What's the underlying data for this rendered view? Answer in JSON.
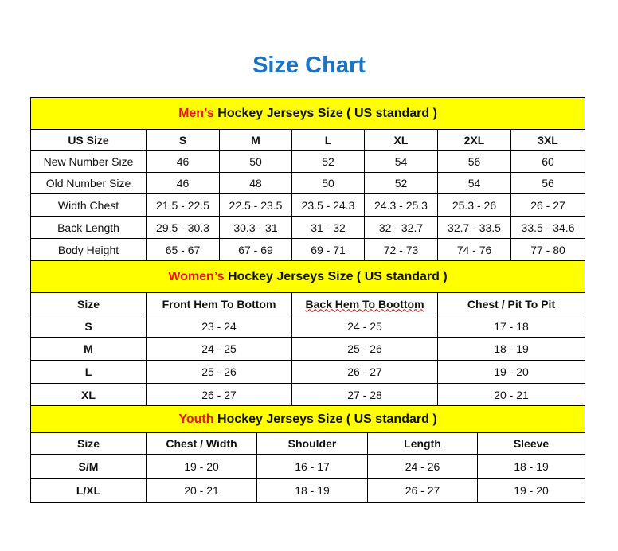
{
  "title": "Size Chart",
  "men": {
    "prefix": "Men’s",
    "heading": " Hockey Jerseys Size ( US standard )",
    "columns": [
      "US Size",
      "S",
      "M",
      "L",
      "XL",
      "2XL",
      "3XL"
    ],
    "rows": [
      [
        "New Number Size",
        "46",
        "50",
        "52",
        "54",
        "56",
        "60"
      ],
      [
        "Old Number Size",
        "46",
        "48",
        "50",
        "52",
        "54",
        "56"
      ],
      [
        "Width Chest",
        "21.5 - 22.5",
        "22.5 - 23.5",
        "23.5 - 24.3",
        "24.3 - 25.3",
        "25.3 - 26",
        "26 - 27"
      ],
      [
        "Back Length",
        "29.5 - 30.3",
        "30.3 - 31",
        "31 - 32",
        "32 - 32.7",
        "32.7 - 33.5",
        "33.5 - 34.6"
      ],
      [
        "Body Height",
        "65 - 67",
        "67 - 69",
        "69 - 71",
        "72 - 73",
        "74 - 76",
        "77 - 80"
      ]
    ]
  },
  "women": {
    "prefix": "Women’s",
    "heading": " Hockey Jerseys Size ( US standard )",
    "columns": [
      "Size",
      "Front Hem To Bottom",
      "Back Hem To Boottom",
      "Chest / Pit To Pit"
    ],
    "rows": [
      [
        "S",
        "23 - 24",
        "24 - 25",
        "17 - 18"
      ],
      [
        "M",
        "24 - 25",
        "25 - 26",
        "18 - 19"
      ],
      [
        "L",
        "25 - 26",
        "26 - 27",
        "19 - 20"
      ],
      [
        "XL",
        "26 - 27",
        "27 - 28",
        "20 - 21"
      ]
    ]
  },
  "youth": {
    "prefix": "Youth",
    "heading": " Hockey Jerseys Size ( US standard )",
    "columns": [
      "Size",
      "Chest / Width",
      "Shoulder",
      "Length",
      "Sleeve"
    ],
    "rows": [
      [
        "S/M",
        "19 - 20",
        "16 - 17",
        "24 - 26",
        "18 - 19"
      ],
      [
        "L/XL",
        "20 - 21",
        "18 - 19",
        "26 - 27",
        "19 - 20"
      ]
    ]
  },
  "colors": {
    "title": "#1a73c4",
    "header_bg": "#ffff00",
    "accent_red": "#e8141c"
  }
}
